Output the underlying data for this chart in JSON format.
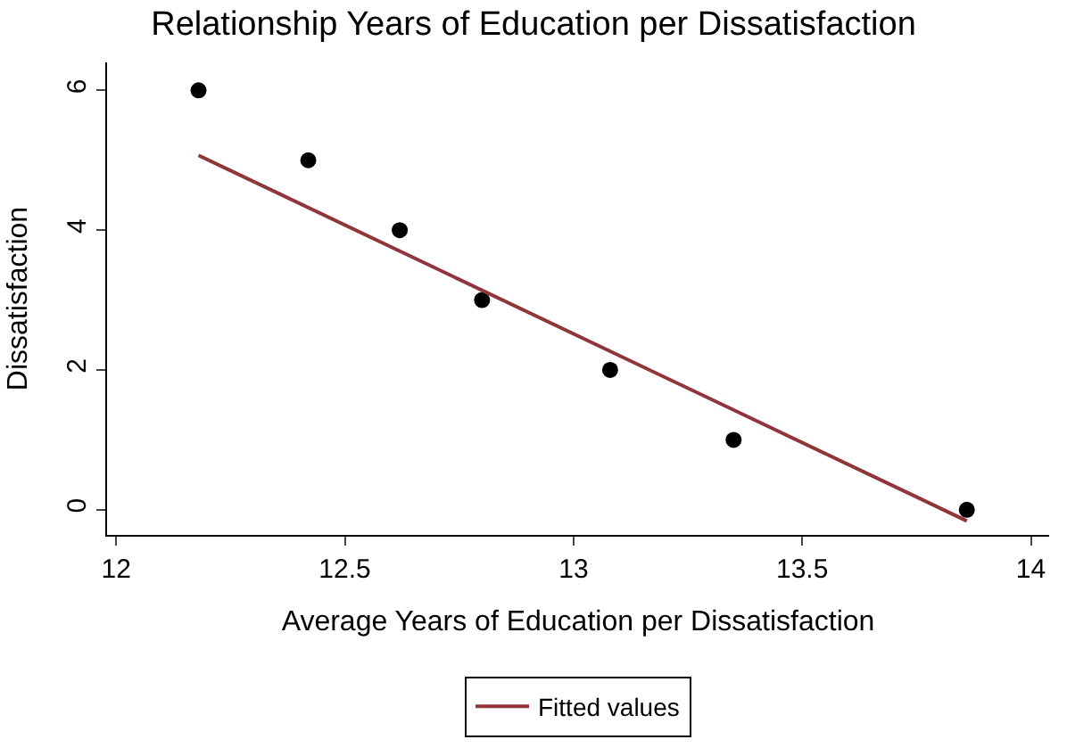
{
  "chart_data": {
    "type": "scatter",
    "title": "Relationship Years of Education per Dissatisfaction",
    "xlabel": "Average Years of Education per Dissatisfaction",
    "ylabel": "Dissatisfaction",
    "series": [
      {
        "color": "#000000",
        "marker": "circle",
        "x": [
          12.18,
          12.42,
          12.62,
          12.8,
          13.08,
          13.35,
          13.86
        ],
        "values": [
          6,
          5,
          4,
          3,
          2,
          1,
          0
        ]
      },
      {
        "type": "line",
        "name": "Fitted values",
        "color": "#90353b",
        "x": [
          12.18,
          13.86
        ],
        "values": [
          5.07,
          -0.16
        ]
      }
    ],
    "xlim": [
      11.98,
      14.04
    ],
    "ylim": [
      -0.36,
      6.4
    ],
    "xticks": [
      12,
      12.5,
      13,
      13.5,
      14
    ],
    "yticks": [
      0,
      2,
      4,
      6
    ],
    "legend": "bottom"
  }
}
